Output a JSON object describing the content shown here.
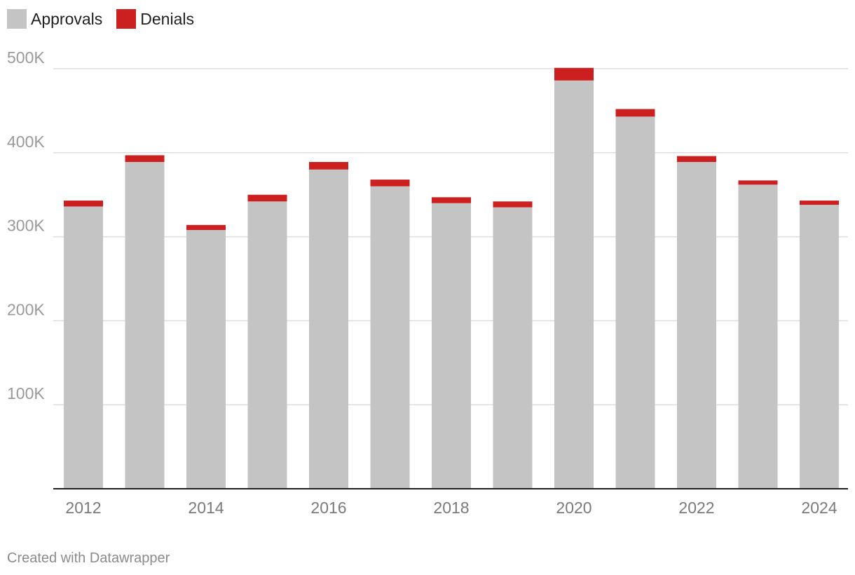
{
  "colors": {
    "approvals": "#c4c4c4",
    "denials": "#cc1f1f",
    "gridline": "#dedede",
    "axis": "#222222"
  },
  "legend": {
    "items": [
      {
        "label": "Approvals",
        "color": "#c4c4c4"
      },
      {
        "label": "Denials",
        "color": "#cc1f1f"
      }
    ]
  },
  "footer": {
    "credit": "Created with Datawrapper"
  },
  "chart_data": {
    "type": "bar",
    "stacked": true,
    "categories": [
      "2012",
      "2013",
      "2014",
      "2015",
      "2016",
      "2017",
      "2018",
      "2019",
      "2020",
      "2021",
      "2022",
      "2023",
      "2024"
    ],
    "x_tick_labels": [
      "2012",
      "",
      "2014",
      "",
      "2016",
      "",
      "2018",
      "",
      "2020",
      "",
      "2022",
      "",
      "2024"
    ],
    "series": [
      {
        "name": "Approvals",
        "values": [
          336000,
          389000,
          308000,
          342000,
          380000,
          360000,
          340000,
          335000,
          486000,
          443000,
          389000,
          362000,
          338000
        ]
      },
      {
        "name": "Denials",
        "values": [
          7000,
          8000,
          6000,
          8000,
          9000,
          8000,
          7000,
          7000,
          15000,
          9000,
          7000,
          5000,
          5000
        ]
      }
    ],
    "ylim": [
      0,
      500000
    ],
    "y_ticks": [
      100000,
      200000,
      300000,
      400000,
      500000
    ],
    "y_tick_labels": [
      "100K",
      "200K",
      "300K",
      "400K",
      "500K"
    ],
    "grid": true,
    "legend_position": "top-left"
  }
}
